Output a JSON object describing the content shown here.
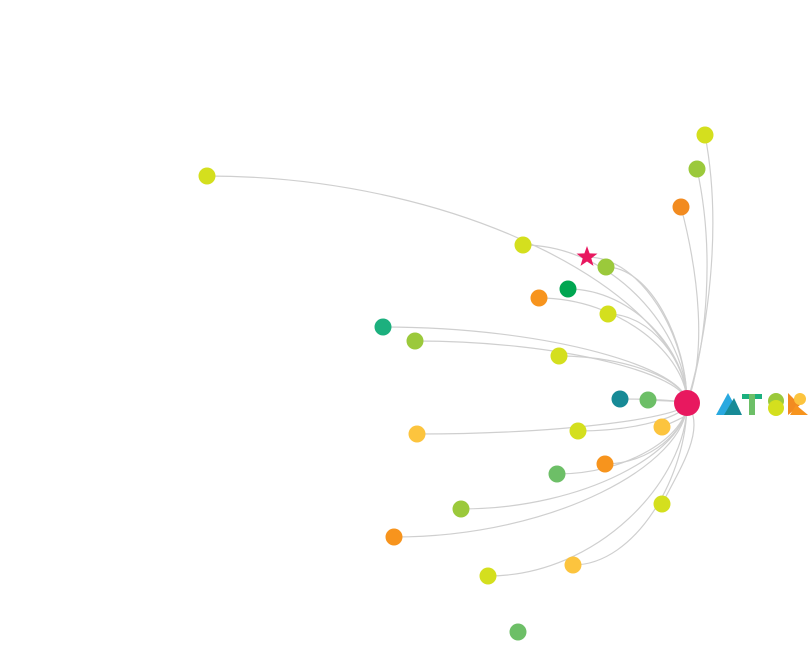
{
  "hub": {
    "color": "#e8185f"
  },
  "nodes": [
    {
      "color": "#d4df1e"
    },
    {
      "color": "#9bc93b"
    },
    {
      "color": "#f28b20"
    },
    {
      "color": "#d4df1e"
    },
    {
      "color": "#d4df1e"
    },
    {
      "color": "#e8185f",
      "shape": "star"
    },
    {
      "color": "#9bc93b"
    },
    {
      "color": "#00a651"
    },
    {
      "color": "#f7941d"
    },
    {
      "color": "#d4df1e"
    },
    {
      "color": "#1cb07e"
    },
    {
      "color": "#9bc93b"
    },
    {
      "color": "#d4df1e"
    },
    {
      "color": "#178a96"
    },
    {
      "color": "#6dbf67"
    },
    {
      "color": "#fcc43e"
    },
    {
      "color": "#d4df1e"
    },
    {
      "color": "#fcc43e"
    },
    {
      "color": "#6dbf67"
    },
    {
      "color": "#f7941d"
    },
    {
      "color": "#9bc93b"
    },
    {
      "color": "#d4df1e"
    },
    {
      "color": "#f7941d"
    },
    {
      "color": "#d4df1e"
    },
    {
      "color": "#fcc43e"
    },
    {
      "color": "#6dbf67"
    }
  ]
}
